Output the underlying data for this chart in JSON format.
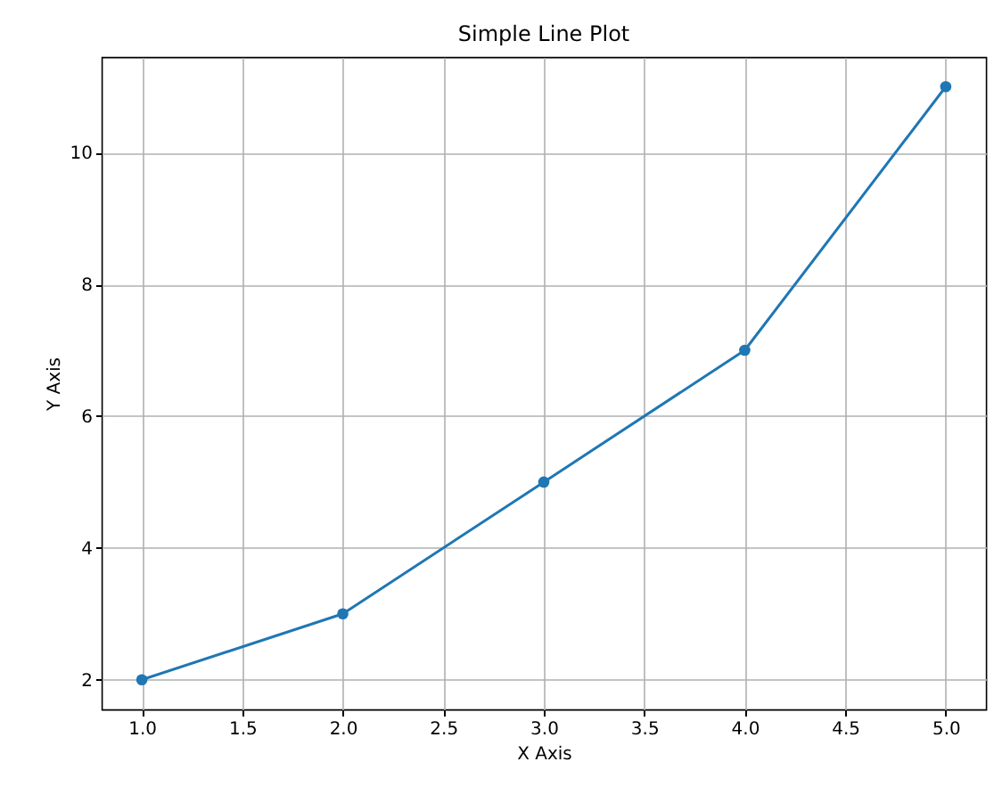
{
  "chart_data": {
    "type": "line",
    "title": "Simple Line Plot",
    "xlabel": "X Axis",
    "ylabel": "Y Axis",
    "x": [
      1,
      2,
      3,
      4,
      5
    ],
    "series": [
      {
        "color": "#1f77b4",
        "values": [
          2,
          3,
          5,
          7,
          11
        ]
      }
    ],
    "xlim": [
      0.8,
      5.2
    ],
    "xticks": [
      {
        "value": 1,
        "label": "1.0"
      },
      {
        "value": 1.5,
        "label": "1.5"
      },
      {
        "value": 2,
        "label": "2.0"
      },
      {
        "value": 2.5,
        "label": "2.5"
      },
      {
        "value": 3,
        "label": "3.0"
      },
      {
        "value": 3.5,
        "label": "3.5"
      },
      {
        "value": 4,
        "label": "4.0"
      },
      {
        "value": 4.5,
        "label": "4.5"
      },
      {
        "value": 5,
        "label": "5.0"
      }
    ],
    "ylim": [
      1.55,
      11.45
    ],
    "yticks": [
      2,
      4,
      6,
      8,
      10
    ],
    "grid": true,
    "marker": "circle",
    "line_style": "solid"
  }
}
